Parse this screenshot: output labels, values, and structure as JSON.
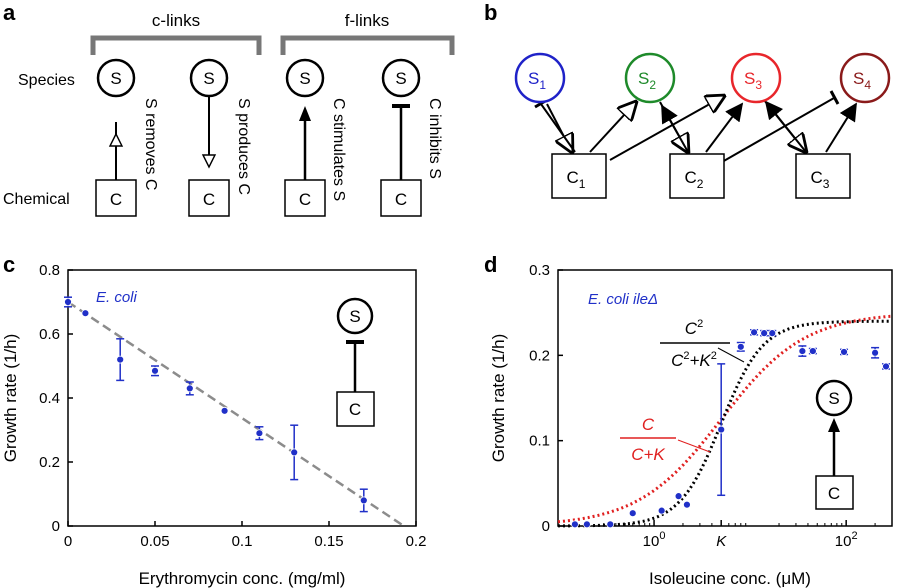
{
  "panel_a": {
    "label": "a",
    "group_c": "c-links",
    "group_f": "f-links",
    "row_species": "Species",
    "row_chemical": "Chemical",
    "node_s": "S",
    "node_c": "C",
    "captions": [
      "S removes C",
      "S produces C",
      "C stimulates S",
      "C inhibits S"
    ]
  },
  "panel_b": {
    "label": "b",
    "species": [
      {
        "main": "S",
        "sub": "1",
        "color": "#1f22c8"
      },
      {
        "main": "S",
        "sub": "2",
        "color": "#1e8a2a"
      },
      {
        "main": "S",
        "sub": "3",
        "color": "#e8262b"
      },
      {
        "main": "S",
        "sub": "4",
        "color": "#8a1a1a"
      }
    ],
    "chemicals": [
      {
        "main": "C",
        "sub": "1"
      },
      {
        "main": "C",
        "sub": "2"
      },
      {
        "main": "C",
        "sub": "3"
      }
    ]
  },
  "chart_data": [
    {
      "panel": "c",
      "type": "scatter",
      "annotation": "E. coli",
      "xlabel": "Erythromycin conc. (mg/ml)",
      "ylabel": "Growth rate (1/h)",
      "xlim": [
        0,
        0.2
      ],
      "ylim": [
        0,
        0.8
      ],
      "xticks": [
        "0",
        "0.05",
        "0.1",
        "0.15",
        "0.2"
      ],
      "yticks": [
        "0",
        "0.2",
        "0.4",
        "0.6",
        "0.8"
      ],
      "inset": {
        "s": "S",
        "c": "C",
        "link": "inhibits"
      },
      "points": [
        {
          "x": 0,
          "y": 0.7,
          "err": 0.015
        },
        {
          "x": 0.01,
          "y": 0.665,
          "err": 0.005
        },
        {
          "x": 0.03,
          "y": 0.52,
          "err": 0.065
        },
        {
          "x": 0.05,
          "y": 0.485,
          "err": 0.015
        },
        {
          "x": 0.07,
          "y": 0.43,
          "err": 0.02
        },
        {
          "x": 0.09,
          "y": 0.36,
          "err": 0.005
        },
        {
          "x": 0.11,
          "y": 0.29,
          "err": 0.02
        },
        {
          "x": 0.13,
          "y": 0.23,
          "err": 0.085
        },
        {
          "x": 0.17,
          "y": 0.08,
          "err": 0.035
        }
      ],
      "fit_line": {
        "x": [
          0,
          0.193
        ],
        "y": [
          0.7,
          0
        ],
        "style": "dashed",
        "color": "#8c8c8c"
      },
      "marker_color": "#2030c8"
    },
    {
      "panel": "d",
      "type": "scatter",
      "annotation": "E. coli ileΔ",
      "xlabel": "Isoleucine conc. (μM)",
      "ylabel": "Growth rate (1/h)",
      "xscale": "log",
      "xlim": [
        0.1,
        300
      ],
      "ylim": [
        0,
        0.3
      ],
      "xticks": [
        "10",
        "K",
        "10"
      ],
      "xtick_exp": [
        "0",
        "",
        "2"
      ],
      "yticks": [
        "0",
        "0.1",
        "0.2",
        "0.3"
      ],
      "inset": {
        "s": "S",
        "c": "C",
        "link": "stimulates"
      },
      "curve_labels": {
        "hill2_num": "C",
        "hill2_num_exp": "2",
        "hill2_den": "C",
        "hill2_den_exp": "2",
        "hill2_plus": "+K",
        "hill2_plus_exp": "2",
        "hill1_num": "C",
        "hill1_den": "C+K"
      },
      "K": 5,
      "vmax_black": 0.24,
      "vmax_red": 0.25,
      "points": [
        {
          "x": 0.15,
          "y": 0.002,
          "err": 0
        },
        {
          "x": 0.2,
          "y": 0.002,
          "err": 0
        },
        {
          "x": 0.35,
          "y": 0.002,
          "err": 0
        },
        {
          "x": 0.6,
          "y": 0.015,
          "err": 0
        },
        {
          "x": 1.2,
          "y": 0.018,
          "err": 0
        },
        {
          "x": 1.8,
          "y": 0.035,
          "err": 0
        },
        {
          "x": 2.2,
          "y": 0.025,
          "err": 0
        },
        {
          "x": 5,
          "y": 0.113,
          "err": 0.077
        },
        {
          "x": 8,
          "y": 0.21,
          "err": 0.005
        },
        {
          "x": 11,
          "y": 0.227,
          "err": 0.003
        },
        {
          "x": 14,
          "y": 0.226,
          "err": 0.003
        },
        {
          "x": 17,
          "y": 0.226,
          "err": 0.003
        },
        {
          "x": 35,
          "y": 0.205,
          "err": 0.006
        },
        {
          "x": 45,
          "y": 0.205,
          "err": 0.003
        },
        {
          "x": 95,
          "y": 0.204,
          "err": 0.003
        },
        {
          "x": 200,
          "y": 0.203,
          "err": 0.006
        },
        {
          "x": 260,
          "y": 0.187,
          "err": 0.003
        }
      ],
      "marker_color": "#2030c8",
      "curve_colors": {
        "black": "#000000",
        "red": "#e02020"
      }
    }
  ]
}
